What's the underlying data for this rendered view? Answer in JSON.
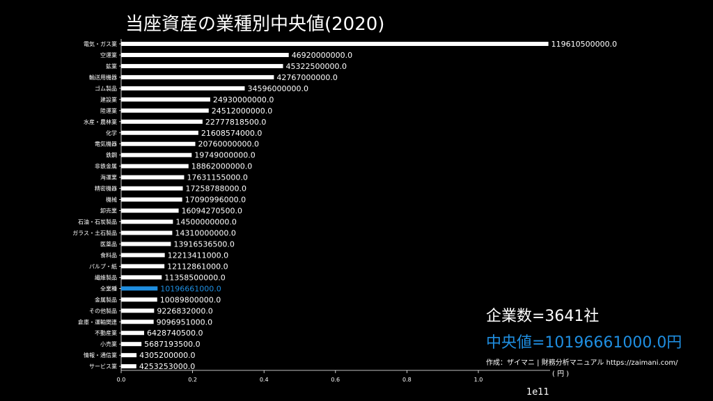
{
  "chart_data": {
    "type": "bar",
    "orientation": "horizontal",
    "title": "当座資産の業種別中央値(2020)",
    "categories": [
      "電気・ガス業",
      "空運業",
      "鉱業",
      "輸送用機器",
      "ゴム製品",
      "建設業",
      "陸運業",
      "水産・農林業",
      "化学",
      "電気機器",
      "鉄鋼",
      "非鉄金属",
      "海運業",
      "精密機器",
      "機械",
      "卸売業",
      "石油・石炭製品",
      "ガラス・土石製品",
      "医薬品",
      "食料品",
      "パルプ・紙",
      "繊維製品",
      "全業種",
      "金属製品",
      "その他製品",
      "倉庫・運輸関連",
      "不動産業",
      "小売業",
      "情報・通信業",
      "サービス業"
    ],
    "values": [
      119610500000.0,
      46920000000.0,
      45322500000.0,
      42767000000.0,
      34596000000.0,
      24930000000.0,
      24512000000.0,
      22777818500.0,
      21608574000.0,
      20760000000.0,
      19749000000.0,
      18862000000.0,
      17631155000.0,
      17258788000.0,
      17090996000.0,
      16094270500.0,
      14500000000.0,
      14310000000.0,
      13916536500.0,
      12213411000.0,
      12112861000.0,
      11358500000.0,
      10196661000.0,
      10089800000.0,
      9226832000.0,
      9096951000.0,
      6428740500.0,
      5687193500.0,
      4305200000.0,
      4253253000.0
    ],
    "value_labels": [
      "119610500000.0",
      "46920000000.0",
      "45322500000.0",
      "42767000000.0",
      "34596000000.0",
      "24930000000.0",
      "24512000000.0",
      "22777818500.0",
      "21608574000.0",
      "20760000000.0",
      "19749000000.0",
      "18862000000.0",
      "17631155000.0",
      "17258788000.0",
      "17090996000.0",
      "16094270500.0",
      "14500000000.0",
      "14310000000.0",
      "13916536500.0",
      "12213411000.0",
      "12112861000.0",
      "11358500000.0",
      "10196661000.0",
      "10089800000.0",
      "9226832000.0",
      "9096951000.0",
      "6428740500.0",
      "5687193500.0",
      "4305200000.0",
      "4253253000.0"
    ],
    "highlight_category": "全業種",
    "x_ticks": [
      "0.0",
      "0.2",
      "0.4",
      "0.6",
      "0.8",
      "1.0"
    ],
    "x_tick_values": [
      0.0,
      0.2,
      0.4,
      0.6,
      0.8,
      1.0
    ],
    "x_scale": 100000000000,
    "x_scale_label": "1e11",
    "xlim": [
      0,
      1.196105
    ],
    "grid": false,
    "colors": {
      "bar": "#ffffff",
      "highlight": "#1f8ee0",
      "background": "#000000"
    }
  },
  "stats": {
    "company_count": "企業数=3641社",
    "median": "中央値=10196661000.0円"
  },
  "credit": "作成：ザイマニ | 財務分析マニュアル https://zaimani.com/",
  "unit": "( 円 )"
}
